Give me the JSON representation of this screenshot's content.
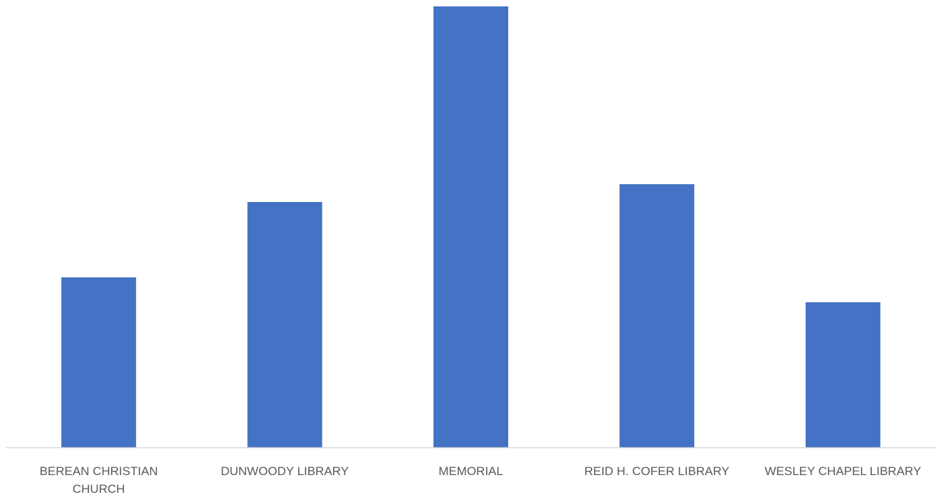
{
  "chart_data": {
    "type": "bar",
    "title": "",
    "xlabel": "",
    "ylabel": "",
    "categories": [
      [
        "BEREAN CHRISTIAN",
        "CHURCH"
      ],
      [
        "DUNWOODY LIBRARY"
      ],
      [
        "MEMORIAL"
      ],
      [
        "REID H. COFER LIBRARY"
      ],
      [
        "WESLEY CHAPEL LIBRARY"
      ]
    ],
    "values": [
      239,
      345,
      620,
      370,
      204
    ],
    "ylim": [
      0,
      620
    ],
    "grid": false,
    "legend": "none",
    "bar_color": "#4472C4",
    "axis_color": "#D9D9D9",
    "label_color": "#595959"
  }
}
